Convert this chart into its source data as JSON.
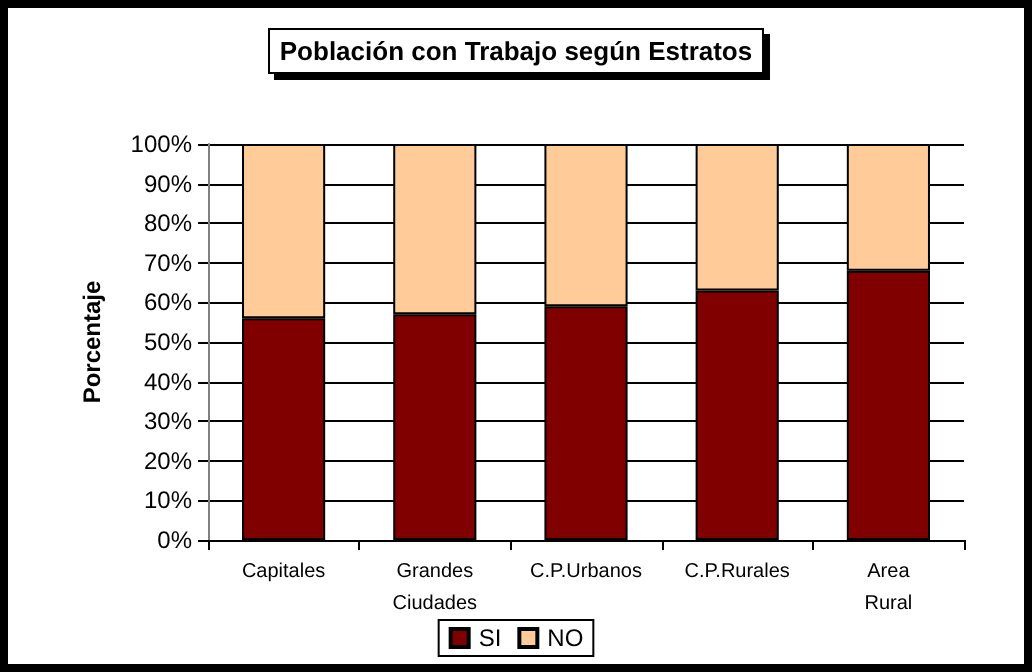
{
  "chart_data": {
    "type": "bar",
    "title": "Población con Trabajo según Estratos",
    "ylabel": "Porcentaje",
    "categories": [
      "Capitales",
      "Grandes Ciudades",
      "C.P.Urbanos",
      "C.P.Rurales",
      "Area Rural"
    ],
    "series": [
      {
        "name": "SI",
        "color": "#800000",
        "values": [
          56,
          57,
          59,
          63,
          68
        ]
      },
      {
        "name": "NO",
        "color": "#ffcc99",
        "values": [
          44,
          43,
          41,
          37,
          32
        ]
      }
    ],
    "stacked": true,
    "ylim": [
      0,
      100
    ],
    "yticks": [
      {
        "value": 0,
        "label": "0%"
      },
      {
        "value": 10,
        "label": "10%"
      },
      {
        "value": 20,
        "label": "20%"
      },
      {
        "value": 30,
        "label": "30%"
      },
      {
        "value": 40,
        "label": "40%"
      },
      {
        "value": 50,
        "label": "50%"
      },
      {
        "value": 60,
        "label": "60%"
      },
      {
        "value": 70,
        "label": "70%"
      },
      {
        "value": 80,
        "label": "80%"
      },
      {
        "value": 90,
        "label": "90%"
      },
      {
        "value": 100,
        "label": "100%"
      }
    ],
    "grid": "y",
    "legend": "bottom"
  }
}
